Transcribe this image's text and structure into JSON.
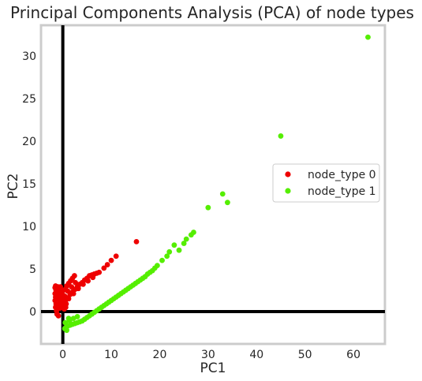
{
  "chart_data": {
    "type": "scatter",
    "title": "Principal Components Analysis (PCA) of node types",
    "xlabel": "PC1",
    "ylabel": "PC2",
    "xlim": [
      -4.5,
      66.5
    ],
    "ylim": [
      -3.8,
      33.6
    ],
    "xticks": [
      0,
      10,
      20,
      30,
      40,
      50,
      60
    ],
    "yticks": [
      0,
      5,
      10,
      15,
      20,
      25,
      30
    ],
    "grid": false,
    "legend_position": "center-right",
    "reference_lines": [
      {
        "axis": "x",
        "value": 0,
        "color": "#000000"
      },
      {
        "axis": "y",
        "value": 0,
        "color": "#000000"
      }
    ],
    "series": [
      {
        "name": "node_type 0",
        "color": "#ee0000",
        "points": [
          [
            15.2,
            8.2
          ],
          [
            11.0,
            6.5
          ],
          [
            10.0,
            6.0
          ],
          [
            9.2,
            5.5
          ],
          [
            8.5,
            5.1
          ],
          [
            7.5,
            4.6
          ],
          [
            7.0,
            4.5
          ],
          [
            6.5,
            4.4
          ],
          [
            6.0,
            4.3
          ],
          [
            5.5,
            4.2
          ],
          [
            5.0,
            3.9
          ],
          [
            4.5,
            3.7
          ],
          [
            4.0,
            3.4
          ],
          [
            3.5,
            3.2
          ],
          [
            3.0,
            2.9
          ],
          [
            2.5,
            2.6
          ],
          [
            2.0,
            2.3
          ],
          [
            1.5,
            2.0
          ],
          [
            1.0,
            1.6
          ],
          [
            0.5,
            1.2
          ],
          [
            6.2,
            4.0
          ],
          [
            5.2,
            3.6
          ],
          [
            4.2,
            3.2
          ],
          [
            3.2,
            2.7
          ],
          [
            2.2,
            2.1
          ],
          [
            1.2,
            1.5
          ],
          [
            0.7,
            0.9
          ],
          [
            2.4,
            4.2
          ],
          [
            2.0,
            3.9
          ],
          [
            1.6,
            3.6
          ],
          [
            1.2,
            3.3
          ],
          [
            0.8,
            3.0
          ],
          [
            0.5,
            2.6
          ],
          [
            2.6,
            3.4
          ],
          [
            1.8,
            2.9
          ],
          [
            1.0,
            2.4
          ],
          [
            0.4,
            1.8
          ],
          [
            0.2,
            1.4
          ],
          [
            0.6,
            0.5
          ],
          [
            0.3,
            0.3
          ],
          [
            -1.5,
            3.0
          ],
          [
            -1.6,
            2.8
          ],
          [
            -1.4,
            2.5
          ],
          [
            -1.6,
            2.1
          ],
          [
            -1.5,
            1.7
          ],
          [
            -1.6,
            1.3
          ],
          [
            -1.4,
            0.9
          ],
          [
            -1.5,
            0.5
          ],
          [
            -1.3,
            0.1
          ],
          [
            -1.0,
            2.9
          ],
          [
            -0.8,
            2.4
          ],
          [
            -0.9,
            1.9
          ],
          [
            -0.7,
            1.4
          ],
          [
            -0.8,
            0.9
          ],
          [
            -0.6,
            0.4
          ],
          [
            -1.2,
            -0.3
          ],
          [
            -0.9,
            -0.5
          ],
          [
            -0.5,
            2.9
          ],
          [
            -0.4,
            2.2
          ],
          [
            -0.3,
            1.6
          ],
          [
            -0.5,
            1.1
          ],
          [
            -0.3,
            0.6
          ],
          [
            0.1,
            2.5
          ],
          [
            0.1,
            1.9
          ],
          [
            0.0,
            1.0
          ]
        ]
      },
      {
        "name": "node_type 1",
        "color": "#55ee00",
        "points": [
          [
            63.0,
            32.2
          ],
          [
            45.0,
            20.6
          ],
          [
            34.0,
            12.8
          ],
          [
            33.0,
            13.8
          ],
          [
            30.0,
            12.2
          ],
          [
            27.0,
            9.3
          ],
          [
            26.5,
            9.0
          ],
          [
            25.5,
            8.5
          ],
          [
            25.0,
            8.0
          ],
          [
            24.0,
            7.2
          ],
          [
            23.0,
            7.8
          ],
          [
            22.0,
            7.0
          ],
          [
            21.5,
            6.5
          ],
          [
            20.5,
            6.0
          ],
          [
            19.5,
            5.4
          ],
          [
            19.0,
            5.1
          ],
          [
            18.5,
            4.8
          ],
          [
            18.0,
            4.6
          ],
          [
            17.5,
            4.4
          ],
          [
            17.0,
            4.1
          ],
          [
            16.5,
            3.9
          ],
          [
            16.0,
            3.7
          ],
          [
            15.5,
            3.5
          ],
          [
            15.0,
            3.3
          ],
          [
            14.5,
            3.1
          ],
          [
            14.0,
            2.9
          ],
          [
            13.5,
            2.7
          ],
          [
            13.0,
            2.5
          ],
          [
            12.5,
            2.3
          ],
          [
            12.0,
            2.1
          ],
          [
            11.5,
            1.9
          ],
          [
            11.0,
            1.7
          ],
          [
            10.5,
            1.5
          ],
          [
            10.0,
            1.3
          ],
          [
            9.5,
            1.1
          ],
          [
            9.0,
            0.9
          ],
          [
            8.5,
            0.7
          ],
          [
            8.0,
            0.5
          ],
          [
            7.5,
            0.3
          ],
          [
            7.0,
            0.1
          ],
          [
            6.5,
            -0.1
          ],
          [
            6.0,
            -0.3
          ],
          [
            5.5,
            -0.5
          ],
          [
            5.0,
            -0.7
          ],
          [
            4.5,
            -0.9
          ],
          [
            4.0,
            -1.1
          ],
          [
            3.5,
            -1.2
          ],
          [
            3.0,
            -1.3
          ],
          [
            2.5,
            -1.4
          ],
          [
            2.0,
            -1.5
          ],
          [
            1.5,
            -1.6
          ],
          [
            1.0,
            -1.7
          ],
          [
            0.6,
            -1.9
          ],
          [
            0.8,
            -2.2
          ],
          [
            1.4,
            -1.1
          ],
          [
            2.2,
            -0.8
          ],
          [
            3.0,
            -0.6
          ],
          [
            1.2,
            -0.8
          ],
          [
            0.5,
            -1.3
          ],
          [
            0.4,
            -2.0
          ]
        ]
      }
    ]
  }
}
